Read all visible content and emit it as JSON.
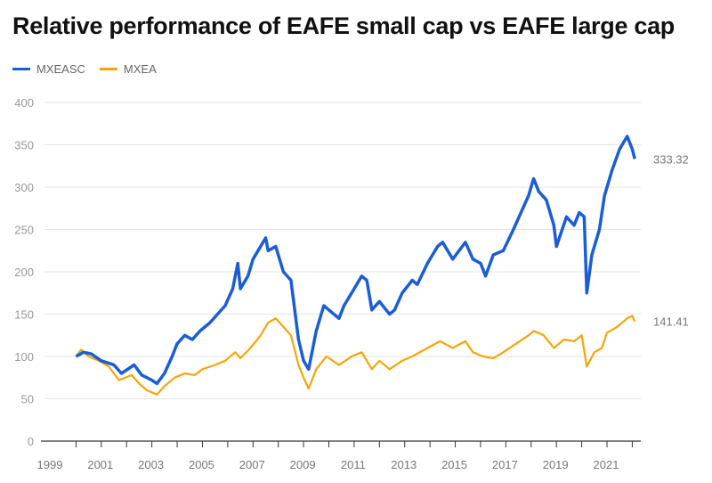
{
  "chart_data": {
    "type": "line",
    "title": "Relative performance of EAFE small cap vs EAFE large cap",
    "xlabel": "",
    "ylabel": "",
    "xlim": [
      1999,
      2022.4
    ],
    "ylim": [
      0,
      400
    ],
    "yticks": [
      "0",
      "50",
      "100",
      "150",
      "200",
      "250",
      "300",
      "350",
      "400"
    ],
    "xticks": [
      "1999",
      "2001",
      "2003",
      "2005",
      "2007",
      "2009",
      "2011",
      "2013",
      "2015",
      "2017",
      "2019",
      "2021"
    ],
    "grid": true,
    "legend": "top-left",
    "series": [
      {
        "name": "MXEASC",
        "color": "#1a5dd6",
        "end_label": "333.32",
        "x": [
          2000.0,
          2000.3,
          2000.6,
          2001.0,
          2001.5,
          2001.8,
          2002.3,
          2002.6,
          2003.0,
          2003.2,
          2003.5,
          2003.8,
          2004.0,
          2004.3,
          2004.6,
          2004.9,
          2005.3,
          2005.6,
          2005.9,
          2006.2,
          2006.4,
          2006.5,
          2006.8,
          2007.0,
          2007.4,
          2007.5,
          2007.6,
          2007.9,
          2008.2,
          2008.5,
          2008.8,
          2009.0,
          2009.2,
          2009.5,
          2009.8,
          2010.0,
          2010.4,
          2010.6,
          2010.9,
          2011.3,
          2011.5,
          2011.7,
          2012.0,
          2012.4,
          2012.6,
          2012.9,
          2013.3,
          2013.5,
          2013.9,
          2014.3,
          2014.5,
          2014.9,
          2015.4,
          2015.7,
          2016.0,
          2016.2,
          2016.5,
          2016.9,
          2017.3,
          2017.6,
          2017.9,
          2018.1,
          2018.3,
          2018.6,
          2018.9,
          2019.0,
          2019.4,
          2019.7,
          2019.9,
          2020.1,
          2020.2,
          2020.4,
          2020.7,
          2020.9,
          2021.2,
          2021.5,
          2021.8,
          2022.0,
          2022.1
        ],
        "y": [
          100,
          105,
          103,
          95,
          90,
          80,
          90,
          78,
          72,
          68,
          80,
          100,
          115,
          125,
          120,
          130,
          140,
          150,
          160,
          180,
          210,
          180,
          195,
          215,
          235,
          240,
          225,
          230,
          200,
          190,
          120,
          95,
          85,
          130,
          160,
          155,
          145,
          160,
          175,
          195,
          190,
          155,
          165,
          150,
          155,
          175,
          190,
          185,
          210,
          230,
          235,
          215,
          235,
          215,
          210,
          195,
          220,
          225,
          250,
          270,
          290,
          310,
          295,
          285,
          255,
          230,
          265,
          255,
          270,
          265,
          175,
          220,
          250,
          290,
          320,
          345,
          360,
          345,
          333.32
        ]
      },
      {
        "name": "MXEA",
        "color": "#f5a50a",
        "end_label": "141.41",
        "x": [
          2000.0,
          2000.2,
          2000.5,
          2000.9,
          2001.3,
          2001.7,
          2002.2,
          2002.5,
          2002.8,
          2003.2,
          2003.5,
          2003.9,
          2004.3,
          2004.7,
          2005.0,
          2005.5,
          2005.9,
          2006.3,
          2006.5,
          2006.9,
          2007.3,
          2007.6,
          2007.9,
          2008.2,
          2008.5,
          2008.8,
          2009.0,
          2009.2,
          2009.5,
          2009.9,
          2010.4,
          2010.9,
          2011.3,
          2011.7,
          2012.0,
          2012.4,
          2012.9,
          2013.3,
          2013.9,
          2014.4,
          2014.9,
          2015.4,
          2015.7,
          2016.1,
          2016.5,
          2016.9,
          2017.4,
          2017.9,
          2018.1,
          2018.5,
          2018.9,
          2019.3,
          2019.7,
          2020.0,
          2020.2,
          2020.5,
          2020.8,
          2021.0,
          2021.4,
          2021.8,
          2022.0,
          2022.1
        ],
        "y": [
          100,
          108,
          100,
          95,
          88,
          72,
          78,
          68,
          60,
          55,
          65,
          75,
          80,
          78,
          85,
          90,
          95,
          105,
          98,
          110,
          125,
          140,
          145,
          135,
          125,
          90,
          75,
          62,
          85,
          100,
          90,
          100,
          105,
          85,
          95,
          85,
          95,
          100,
          110,
          118,
          110,
          118,
          105,
          100,
          98,
          105,
          115,
          125,
          130,
          125,
          110,
          120,
          118,
          125,
          88,
          105,
          110,
          128,
          135,
          145,
          148,
          141.41
        ]
      }
    ]
  }
}
